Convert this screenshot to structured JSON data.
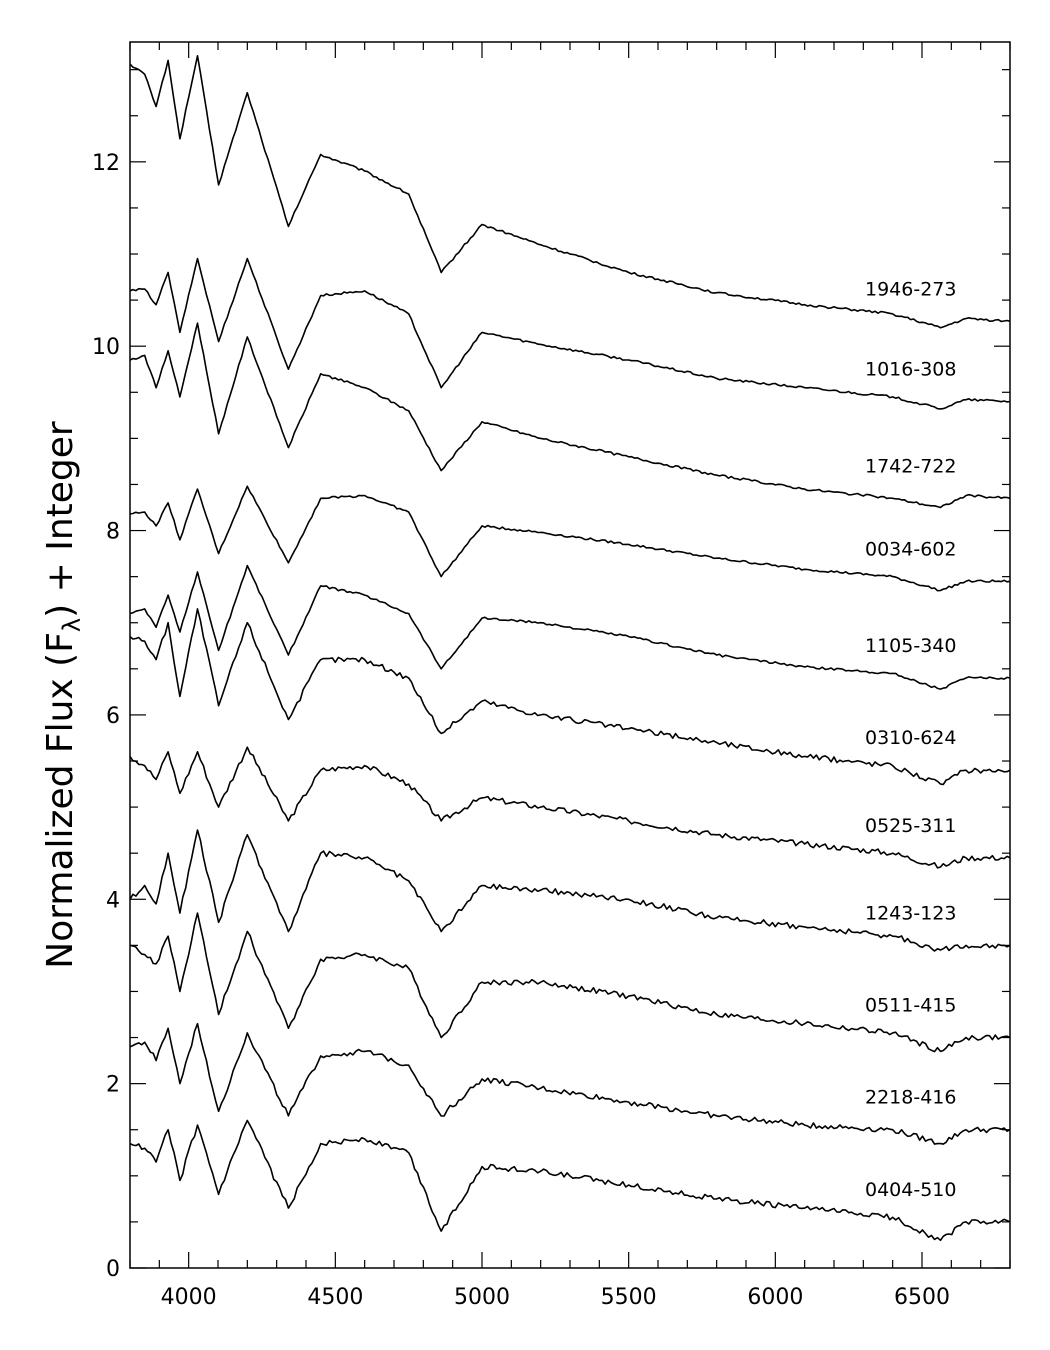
{
  "chart_data": {
    "type": "line",
    "title": "",
    "xlabel": "",
    "ylabel": "Normalized Flux (F",
    "ylabel_subscript": "λ",
    "ylabel_suffix": ") + Integer",
    "xlim": [
      3800,
      6800
    ],
    "ylim": [
      0,
      13.3
    ],
    "x_ticks": [
      4000,
      4500,
      5000,
      5500,
      6000,
      6500
    ],
    "x_tick_labels": [
      "4000",
      "4500",
      "5000",
      "5500",
      "6000",
      "6500"
    ],
    "y_ticks": [
      0,
      2,
      4,
      6,
      8,
      10,
      12
    ],
    "y_tick_labels": [
      "0",
      "2",
      "4",
      "6",
      "8",
      "10",
      "12"
    ],
    "grid": false,
    "legend": "none",
    "line_color": "#000000",
    "x": [
      3800,
      3850,
      3889,
      3930,
      3970,
      4030,
      4102,
      4200,
      4340,
      4450,
      4600,
      4750,
      4861,
      5000,
      5200,
      5500,
      5800,
      6100,
      6400,
      6563,
      6650,
      6800
    ],
    "series": [
      {
        "name": "1946-273",
        "values": [
          13.06,
          12.95,
          12.6,
          13.1,
          12.25,
          13.15,
          11.75,
          12.75,
          11.3,
          12.08,
          11.9,
          11.65,
          10.8,
          11.32,
          11.1,
          10.8,
          10.58,
          10.45,
          10.35,
          10.2,
          10.3,
          10.27
        ]
      },
      {
        "name": "1016-308",
        "values": [
          10.6,
          10.62,
          10.45,
          10.8,
          10.15,
          10.95,
          10.05,
          10.95,
          9.75,
          10.55,
          10.6,
          10.35,
          9.55,
          10.15,
          10.02,
          9.85,
          9.65,
          9.55,
          9.45,
          9.32,
          9.42,
          9.4
        ]
      },
      {
        "name": "1742-722",
        "values": [
          9.85,
          9.9,
          9.55,
          9.95,
          9.45,
          10.25,
          9.05,
          10.1,
          8.9,
          9.7,
          9.55,
          9.3,
          8.65,
          9.18,
          9.0,
          8.8,
          8.6,
          8.45,
          8.35,
          8.25,
          8.38,
          8.35
        ]
      },
      {
        "name": "0034-602",
        "values": [
          8.18,
          8.2,
          8.05,
          8.3,
          7.9,
          8.45,
          7.75,
          8.48,
          7.65,
          8.35,
          8.38,
          8.2,
          7.5,
          8.05,
          7.98,
          7.85,
          7.7,
          7.58,
          7.5,
          7.35,
          7.45,
          7.45
        ]
      },
      {
        "name": "1105-340",
        "values": [
          7.1,
          7.15,
          6.95,
          7.3,
          6.9,
          7.55,
          6.7,
          7.62,
          6.65,
          7.4,
          7.3,
          7.1,
          6.5,
          7.05,
          7.0,
          6.85,
          6.65,
          6.52,
          6.45,
          6.28,
          6.4,
          6.4
        ]
      },
      {
        "name": "0310-624",
        "values": [
          6.85,
          6.8,
          6.6,
          7.0,
          6.2,
          7.15,
          6.1,
          7.0,
          5.95,
          6.6,
          6.6,
          6.4,
          5.8,
          6.15,
          6.0,
          5.85,
          5.7,
          5.55,
          5.45,
          5.25,
          5.4,
          5.4
        ]
      },
      {
        "name": "0525-311",
        "values": [
          5.55,
          5.45,
          5.3,
          5.6,
          5.15,
          5.6,
          5.0,
          5.65,
          4.85,
          5.4,
          5.45,
          5.25,
          4.85,
          5.1,
          5.0,
          4.85,
          4.7,
          4.6,
          4.5,
          4.35,
          4.45,
          4.45
        ]
      },
      {
        "name": "1243-123",
        "values": [
          4.0,
          4.15,
          3.95,
          4.5,
          3.85,
          4.75,
          3.75,
          4.7,
          3.65,
          4.5,
          4.45,
          4.2,
          3.65,
          4.15,
          4.1,
          4.0,
          3.8,
          3.7,
          3.6,
          3.45,
          3.5,
          3.5
        ]
      },
      {
        "name": "0511-415",
        "values": [
          3.5,
          3.4,
          3.3,
          3.6,
          3.0,
          3.85,
          2.75,
          3.65,
          2.6,
          3.35,
          3.4,
          3.25,
          2.5,
          3.1,
          3.1,
          2.95,
          2.75,
          2.65,
          2.55,
          2.35,
          2.5,
          2.5
        ]
      },
      {
        "name": "2218-416",
        "values": [
          2.4,
          2.45,
          2.25,
          2.6,
          2.0,
          2.65,
          1.7,
          2.55,
          1.65,
          2.3,
          2.35,
          2.2,
          1.65,
          2.05,
          1.95,
          1.8,
          1.65,
          1.55,
          1.5,
          1.35,
          1.5,
          1.5
        ]
      },
      {
        "name": "0404-510",
        "values": [
          1.35,
          1.3,
          1.15,
          1.5,
          0.95,
          1.55,
          0.8,
          1.6,
          0.65,
          1.35,
          1.4,
          1.25,
          0.4,
          1.1,
          1.05,
          0.9,
          0.75,
          0.65,
          0.55,
          0.3,
          0.5,
          0.5
        ]
      }
    ]
  }
}
